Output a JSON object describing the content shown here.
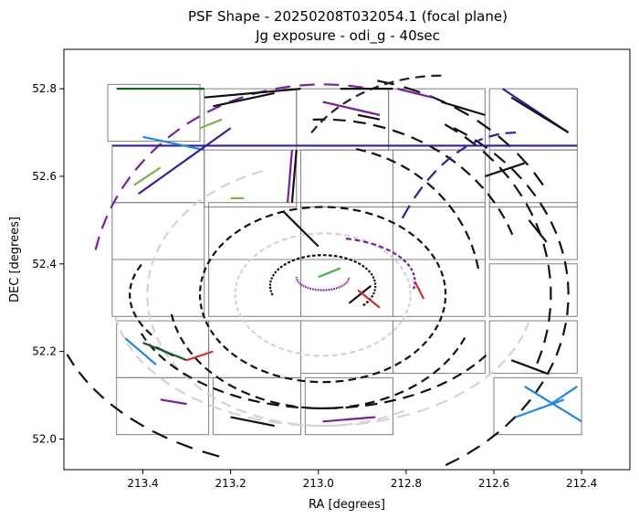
{
  "chart_data": {
    "type": "scatter",
    "title_lines": [
      "PSF Shape - 20250208T032054.1 (focal plane)",
      "Jg exposure - odi_g - 40sec"
    ],
    "xlabel": "RA [degrees]",
    "ylabel": "DEC [degrees]",
    "xlim": [
      213.58,
      212.29
    ],
    "ylim": [
      51.93,
      52.89
    ],
    "x_inverted": true,
    "x_ticks": [
      {
        "value": 213.4,
        "label": "213.4"
      },
      {
        "value": 213.2,
        "label": "213.2"
      },
      {
        "value": 213.0,
        "label": "213.0"
      },
      {
        "value": 212.8,
        "label": "212.8"
      },
      {
        "value": 212.6,
        "label": "212.6"
      },
      {
        "value": 212.4,
        "label": "212.4"
      }
    ],
    "y_ticks": [
      {
        "value": 52.0,
        "label": "52.0"
      },
      {
        "value": 52.2,
        "label": "52.2"
      },
      {
        "value": 52.4,
        "label": "52.4"
      },
      {
        "value": 52.6,
        "label": "52.6"
      },
      {
        "value": 52.8,
        "label": "52.8"
      }
    ],
    "grid": false,
    "legend": "none",
    "ccd_outline_color": "#808080",
    "ccds": [
      {
        "ra0": 213.48,
        "ra1": 213.27,
        "dec0": 52.68,
        "dec1": 52.81
      },
      {
        "ra0": 213.26,
        "ra1": 213.05,
        "dec0": 52.67,
        "dec1": 52.8
      },
      {
        "ra0": 213.05,
        "ra1": 212.84,
        "dec0": 52.66,
        "dec1": 52.8
      },
      {
        "ra0": 212.84,
        "ra1": 212.62,
        "dec0": 52.66,
        "dec1": 52.8
      },
      {
        "ra0": 212.61,
        "ra1": 212.41,
        "dec0": 52.66,
        "dec1": 52.8
      },
      {
        "ra0": 213.47,
        "ra1": 213.26,
        "dec0": 52.54,
        "dec1": 52.67
      },
      {
        "ra0": 213.26,
        "ra1": 213.05,
        "dec0": 52.53,
        "dec1": 52.66
      },
      {
        "ra0": 213.04,
        "ra1": 212.83,
        "dec0": 52.53,
        "dec1": 52.66
      },
      {
        "ra0": 212.83,
        "ra1": 212.62,
        "dec0": 52.53,
        "dec1": 52.66
      },
      {
        "ra0": 212.61,
        "ra1": 212.41,
        "dec0": 52.53,
        "dec1": 52.66
      },
      {
        "ra0": 213.47,
        "ra1": 213.26,
        "dec0": 52.41,
        "dec1": 52.54
      },
      {
        "ra0": 213.25,
        "ra1": 213.04,
        "dec0": 52.41,
        "dec1": 52.54
      },
      {
        "ra0": 213.04,
        "ra1": 212.83,
        "dec0": 52.41,
        "dec1": 52.54
      },
      {
        "ra0": 212.83,
        "ra1": 212.62,
        "dec0": 52.41,
        "dec1": 52.54
      },
      {
        "ra0": 212.61,
        "ra1": 212.41,
        "dec0": 52.41,
        "dec1": 52.54
      },
      {
        "ra0": 213.47,
        "ra1": 213.26,
        "dec0": 52.28,
        "dec1": 52.41
      },
      {
        "ra0": 213.25,
        "ra1": 213.04,
        "dec0": 52.28,
        "dec1": 52.41
      },
      {
        "ra0": 213.04,
        "ra1": 212.83,
        "dec0": 52.28,
        "dec1": 52.41
      },
      {
        "ra0": 212.83,
        "ra1": 212.62,
        "dec0": 52.28,
        "dec1": 52.41
      },
      {
        "ra0": 212.61,
        "ra1": 212.41,
        "dec0": 52.28,
        "dec1": 52.4
      },
      {
        "ra0": 213.46,
        "ra1": 213.25,
        "dec0": 52.14,
        "dec1": 52.27
      },
      {
        "ra0": 213.25,
        "ra1": 213.04,
        "dec0": 52.14,
        "dec1": 52.27
      },
      {
        "ra0": 213.04,
        "ra1": 212.83,
        "dec0": 52.15,
        "dec1": 52.27
      },
      {
        "ra0": 212.83,
        "ra1": 212.62,
        "dec0": 52.15,
        "dec1": 52.27
      },
      {
        "ra0": 212.61,
        "ra1": 212.41,
        "dec0": 52.15,
        "dec1": 52.27
      },
      {
        "ra0": 213.46,
        "ra1": 213.25,
        "dec0": 52.01,
        "dec1": 52.14
      },
      {
        "ra0": 213.24,
        "ra1": 213.04,
        "dec0": 52.01,
        "dec1": 52.14
      },
      {
        "ra0": 213.03,
        "ra1": 212.83,
        "dec0": 52.01,
        "dec1": 52.14
      },
      {
        "ra0": 212.6,
        "ra1": 212.4,
        "dec0": 52.01,
        "dec1": 52.14
      }
    ],
    "arcs": [
      {
        "center_ra": 212.99,
        "center_dec": 52.33,
        "rx": 0.53,
        "ry": 0.48,
        "from": 80,
        "to": 170,
        "color": "#7b1fa2"
      },
      {
        "center_ra": 212.99,
        "center_dec": 52.33,
        "rx": 0.56,
        "ry": 0.45,
        "from": -60,
        "to": 60,
        "color": "#111111"
      },
      {
        "center_ra": 212.99,
        "center_dec": 52.33,
        "rx": 0.46,
        "ry": 0.4,
        "from": 20,
        "to": 95,
        "color": "#111111"
      },
      {
        "center_ra": 212.99,
        "center_dec": 52.33,
        "rx": 0.4,
        "ry": 0.3,
        "from": 110,
        "to": 300,
        "color": "#d3d3d3"
      },
      {
        "center_ra": 212.99,
        "center_dec": 52.33,
        "rx": 0.28,
        "ry": 0.2,
        "from": 0,
        "to": 360,
        "color": "#111111"
      },
      {
        "center_ra": 212.99,
        "center_dec": 52.33,
        "rx": 0.2,
        "ry": 0.14,
        "from": 0,
        "to": 360,
        "color": "#d3d3d3"
      },
      {
        "center_ra": 212.99,
        "center_dec": 52.35,
        "rx": 0.12,
        "ry": 0.07,
        "from": -40,
        "to": 200,
        "color": "#111111"
      },
      {
        "center_ra": 212.99,
        "center_dec": 52.37,
        "rx": 0.06,
        "ry": 0.03,
        "from": 180,
        "to": 360,
        "color": "#7b1fa2"
      },
      {
        "center_ra": 212.99,
        "center_dec": 52.33,
        "rx": 0.35,
        "ry": 0.26,
        "from": 190,
        "to": 340,
        "color": "#111111"
      },
      {
        "center_ra": 212.99,
        "center_dec": 52.33,
        "rx": 0.44,
        "ry": 0.26,
        "from": 200,
        "to": 330,
        "color": "#111111"
      },
      {
        "center_ra": 212.99,
        "center_dec": 52.33,
        "rx": 0.48,
        "ry": 0.3,
        "from": 190,
        "to": 350,
        "color": "#d3d3d3"
      },
      {
        "center_ra": 212.99,
        "center_dec": 52.33,
        "rx": 0.62,
        "ry": 0.4,
        "from": 200,
        "to": 250,
        "color": "#111111"
      },
      {
        "center_ra": 212.99,
        "center_dec": 52.33,
        "rx": 0.52,
        "ry": 0.46,
        "from": -20,
        "to": 60,
        "color": "#111111"
      },
      {
        "center_ra": 212.99,
        "center_dec": 52.33,
        "rx": 0.58,
        "ry": 0.5,
        "from": 30,
        "to": 80,
        "color": "#111111"
      },
      {
        "center_ra": 212.99,
        "center_dec": 52.33,
        "rx": 0.36,
        "ry": 0.34,
        "from": 10,
        "to": 80,
        "color": "#111111"
      },
      {
        "center_ra": 212.99,
        "center_dec": 52.33,
        "rx": 0.44,
        "ry": 0.2,
        "from": 160,
        "to": 210,
        "color": "#111111"
      },
      {
        "center_ra": 212.55,
        "center_dec": 52.1,
        "rx": 0.35,
        "ry": 0.6,
        "from": 90,
        "to": 140,
        "color": "#3a1a9c"
      },
      {
        "center_ra": 212.72,
        "center_dec": 52.55,
        "rx": 0.35,
        "ry": 0.28,
        "from": 90,
        "to": 150,
        "color": "#222222"
      },
      {
        "center_ra": 212.98,
        "center_dec": 52.36,
        "rx": 0.2,
        "ry": 0.1,
        "from": -10,
        "to": 80,
        "color": "#7b1fa2"
      }
    ],
    "segments": [
      {
        "x": [
          213.47,
          212.41
        ],
        "y": [
          52.67,
          52.67
        ],
        "color": "#3a1a9c"
      },
      {
        "x": [
          213.26,
          213.04
        ],
        "y": [
          52.78,
          52.8
        ],
        "color": "#111111"
      },
      {
        "x": [
          212.95,
          212.83
        ],
        "y": [
          52.8,
          52.8
        ],
        "color": "#111111"
      },
      {
        "x": [
          213.24,
          213.1
        ],
        "y": [
          52.76,
          52.79
        ],
        "color": "#111111"
      },
      {
        "x": [
          213.07,
          213.06
        ],
        "y": [
          52.54,
          52.66
        ],
        "color": "#7b1fa2"
      },
      {
        "x": [
          213.06,
          213.05
        ],
        "y": [
          52.54,
          52.66
        ],
        "color": "#111111"
      },
      {
        "x": [
          212.99,
          212.86
        ],
        "y": [
          52.77,
          52.74
        ],
        "color": "#7b1fa2"
      },
      {
        "x": [
          212.82,
          212.74
        ],
        "y": [
          52.8,
          52.78
        ],
        "color": "#7b1fa2"
      },
      {
        "x": [
          212.72,
          212.62
        ],
        "y": [
          52.77,
          52.74
        ],
        "color": "#111111"
      },
      {
        "x": [
          212.58,
          212.43
        ],
        "y": [
          52.8,
          52.7
        ],
        "color": "#3a1a9c"
      },
      {
        "x": [
          212.56,
          212.43
        ],
        "y": [
          52.78,
          52.7
        ],
        "color": "#111111"
      },
      {
        "x": [
          212.91,
          212.86
        ],
        "y": [
          52.74,
          52.73
        ],
        "color": "#111111"
      },
      {
        "x": [
          212.53,
          212.4
        ],
        "y": [
          52.12,
          52.04
        ],
        "color": "#1e88e5"
      },
      {
        "x": [
          212.55,
          212.44
        ],
        "y": [
          52.05,
          52.09
        ],
        "color": "#1e88e5"
      },
      {
        "x": [
          212.47,
          212.41
        ],
        "y": [
          52.08,
          52.12
        ],
        "color": "#1e88e5"
      },
      {
        "x": [
          213.46,
          213.26
        ],
        "y": [
          52.8,
          52.8
        ],
        "color": "#1b5e20"
      },
      {
        "x": [
          213.4,
          213.26
        ],
        "y": [
          52.69,
          52.66
        ],
        "color": "#1e88e5"
      },
      {
        "x": [
          213.41,
          213.2
        ],
        "y": [
          52.56,
          52.71
        ],
        "color": "#3a1a9c"
      },
      {
        "x": [
          213.2,
          213.17
        ],
        "y": [
          52.55,
          52.55
        ],
        "color": "#7cb342"
      },
      {
        "x": [
          213.44,
          213.37
        ],
        "y": [
          52.23,
          52.17
        ],
        "color": "#1e88e5"
      },
      {
        "x": [
          213.37,
          213.33
        ],
        "y": [
          52.21,
          52.19
        ],
        "color": "#111111"
      },
      {
        "x": [
          212.93,
          212.88
        ],
        "y": [
          52.31,
          52.35
        ],
        "color": "#111111"
      },
      {
        "x": [
          212.91,
          212.86
        ],
        "y": [
          52.34,
          52.3
        ],
        "color": "#d32f2f"
      },
      {
        "x": [
          213.0,
          212.95
        ],
        "y": [
          52.37,
          52.39
        ],
        "color": "#4caf50"
      },
      {
        "x": [
          213.08,
          213.0
        ],
        "y": [
          52.52,
          52.44
        ],
        "color": "#111111"
      },
      {
        "x": [
          213.4,
          213.3
        ],
        "y": [
          52.22,
          52.18
        ],
        "color": "#1b5e20"
      },
      {
        "x": [
          213.3,
          213.24
        ],
        "y": [
          52.18,
          52.2
        ],
        "color": "#d32f2f"
      },
      {
        "x": [
          212.78,
          212.76
        ],
        "y": [
          52.36,
          52.32
        ],
        "color": "#d32f2f"
      },
      {
        "x": [
          212.62,
          212.53
        ],
        "y": [
          52.6,
          52.63
        ],
        "color": "#111111"
      },
      {
        "x": [
          212.52,
          212.48
        ],
        "y": [
          52.5,
          52.45
        ],
        "color": "#111111"
      },
      {
        "x": [
          212.56,
          212.48
        ],
        "y": [
          52.18,
          52.15
        ],
        "color": "#111111"
      },
      {
        "x": [
          213.42,
          213.36
        ],
        "y": [
          52.58,
          52.62
        ],
        "color": "#7cb342"
      },
      {
        "x": [
          213.27,
          213.22
        ],
        "y": [
          52.71,
          52.73
        ],
        "color": "#7cb342"
      },
      {
        "x": [
          213.36,
          213.3
        ],
        "y": [
          52.09,
          52.08
        ],
        "color": "#7b1fa2"
      },
      {
        "x": [
          212.99,
          212.87
        ],
        "y": [
          52.04,
          52.05
        ],
        "color": "#7b1fa2"
      },
      {
        "x": [
          213.2,
          213.1
        ],
        "y": [
          52.05,
          52.03
        ],
        "color": "#111111"
      }
    ]
  }
}
